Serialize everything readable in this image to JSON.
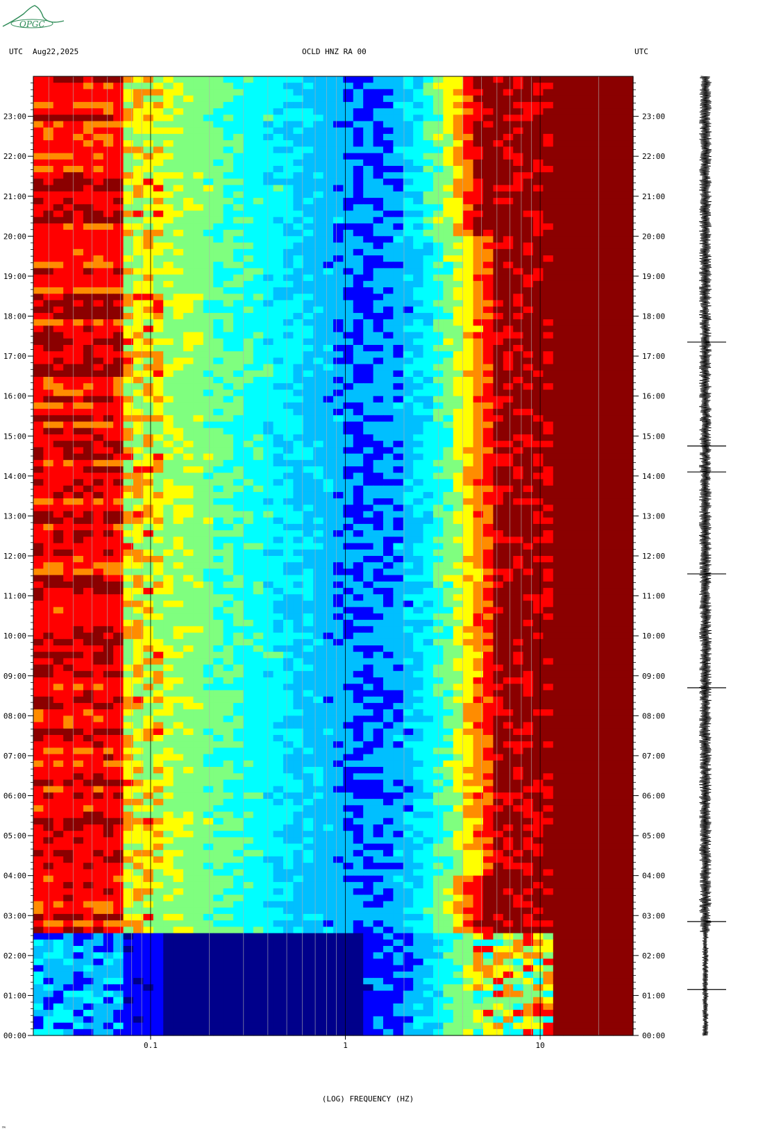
{
  "header": {
    "left_label": "UTC",
    "date": "Aug22,2025",
    "station": "OCLD HNZ RA 00",
    "right_label": "UTC"
  },
  "logo": {
    "text": "OPGC",
    "color": "#2e8b57"
  },
  "chart_data": {
    "type": "heatmap",
    "title": "OCLD HNZ RA 00",
    "xlabel": "(LOG) FREQUENCY (HZ)",
    "ylabel": "",
    "x_scale": "log",
    "xlim": [
      0.025,
      30
    ],
    "x_ticks": [
      {
        "value": 0.1,
        "label": "0.1"
      },
      {
        "value": 1,
        "label": "1"
      },
      {
        "value": 10,
        "label": "10"
      }
    ],
    "y_ticks": [
      "00:00",
      "01:00",
      "02:00",
      "03:00",
      "04:00",
      "05:00",
      "06:00",
      "07:00",
      "08:00",
      "09:00",
      "10:00",
      "11:00",
      "12:00",
      "13:00",
      "14:00",
      "15:00",
      "16:00",
      "17:00",
      "18:00",
      "19:00",
      "20:00",
      "21:00",
      "22:00",
      "23:00"
    ],
    "ylim_hours": [
      0,
      24
    ],
    "colormap": [
      "#00008b",
      "#0000ff",
      "#00bfff",
      "#00ffff",
      "#7fff7f",
      "#ffff00",
      "#ff8c00",
      "#ff0000",
      "#8b0000"
    ],
    "noise_onset_hour": 2.6,
    "strong_band_max_hz": 0.12,
    "high_freq_saturation_hz": 6.5,
    "waveform_spike_hours": [
      17.35,
      14.75,
      14.1,
      11.55,
      2.85,
      1.15,
      8.7
    ]
  },
  "footer": {
    "mark": "™"
  }
}
